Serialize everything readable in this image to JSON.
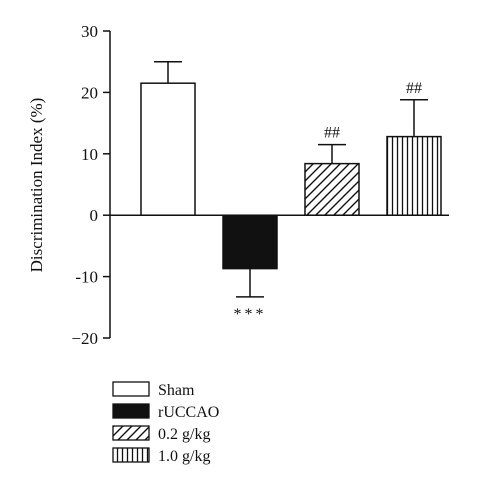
{
  "chart_data": {
    "type": "bar",
    "categories": [
      "Sham",
      "rUCCAO",
      "0.2 g/kg",
      "1.0 g/kg"
    ],
    "values": [
      21.5,
      -8.7,
      8.4,
      12.8
    ],
    "error": [
      3.5,
      4.6,
      3.1,
      6.0
    ],
    "annotations": [
      "",
      "***",
      "##",
      "##"
    ],
    "fills": [
      "white",
      "black",
      "diagonal-hatch",
      "vertical-hatch"
    ],
    "ylabel": "Discrimination Index (%)",
    "ylim": [
      -20,
      30
    ],
    "yticks": [
      -20,
      -10,
      0,
      10,
      20,
      30
    ],
    "ytick_labels": [
      "−20",
      "-10",
      "0",
      "10",
      "20",
      "30"
    ],
    "legend_position": "bottom-left",
    "grid": false
  }
}
